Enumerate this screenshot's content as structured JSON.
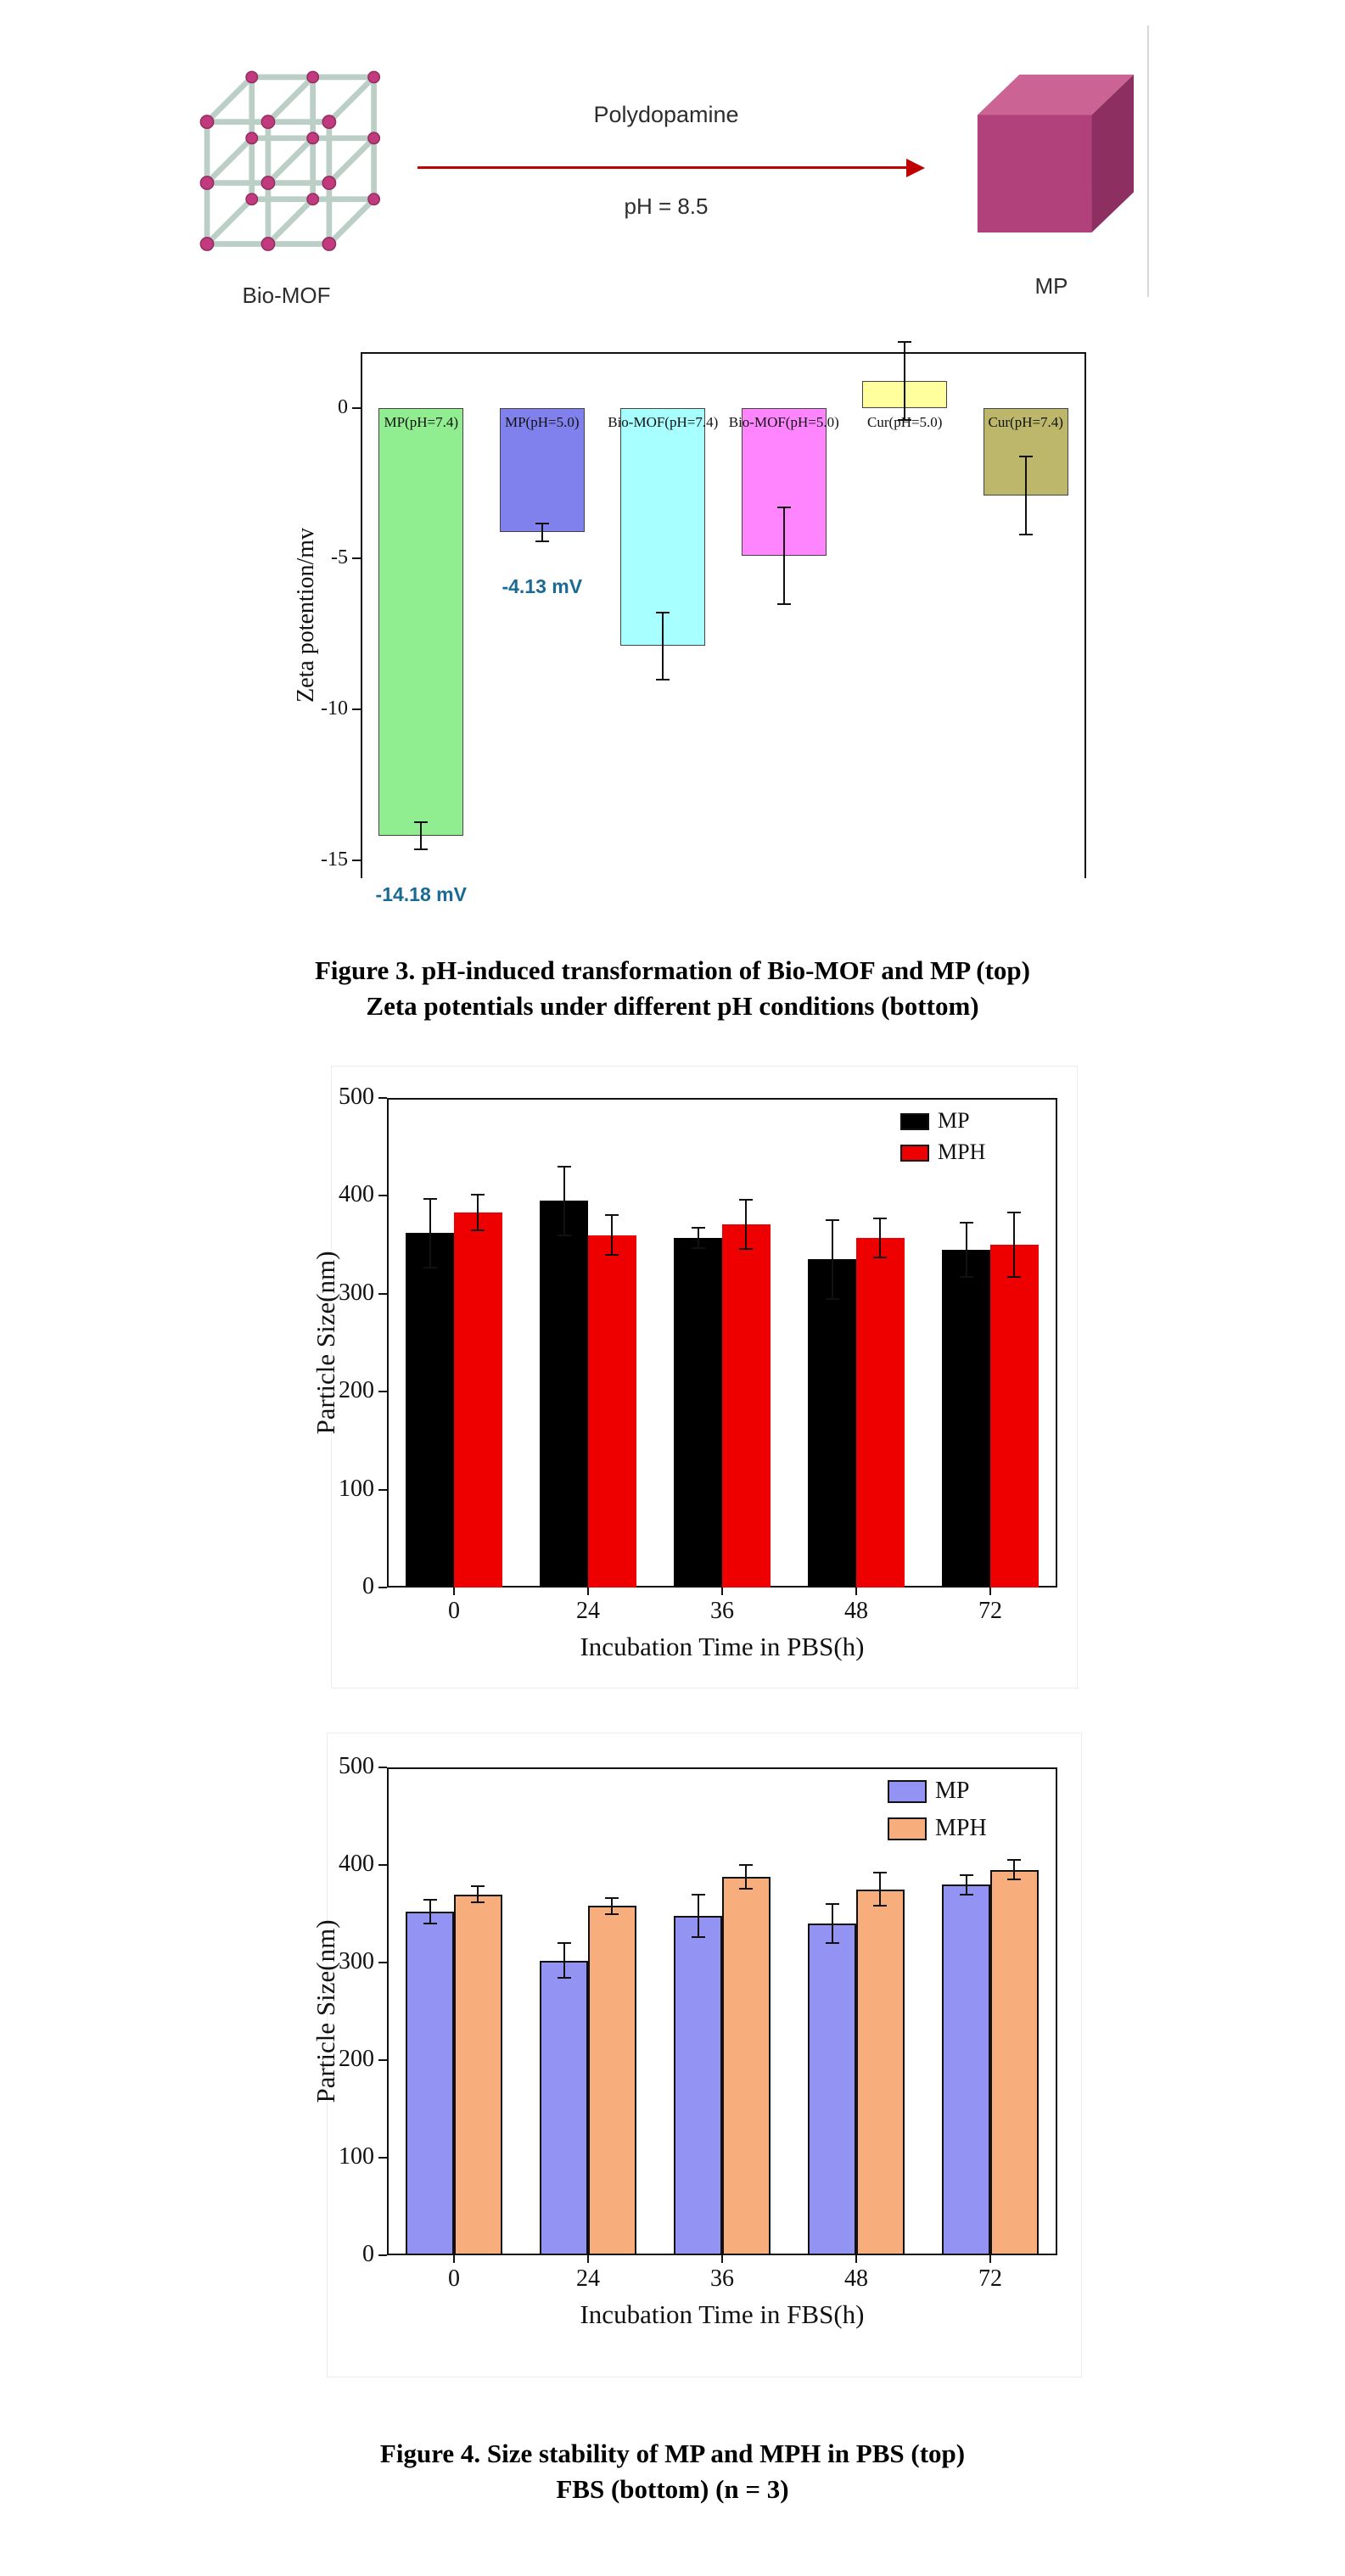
{
  "schematic": {
    "reactant_label": "Bio-MOF",
    "product_label": "MP",
    "arrow_top_label": "Polydopamine",
    "arrow_bottom_label": "pH = 8.5",
    "arrow_color": "#c00000",
    "strut_color": "#bccfc7",
    "node_color": "#c23a7e",
    "cube_face_colors": {
      "top": "#cb6394",
      "front": "#b1417a",
      "right": "#8d2f61"
    }
  },
  "captions": {
    "figure3_line1": "Figure 3. pH-induced transformation of Bio-MOF and MP (top)",
    "figure3_line2": "Zeta potentials under different pH conditions (bottom)",
    "figure4_line1": "Figure 4. Size stability of MP and MPH in PBS (top)",
    "figure4_line2": "FBS (bottom) (n = 3)"
  },
  "chart_data": [
    {
      "id": "zeta",
      "type": "bar",
      "title": "",
      "xlabel": "",
      "ylabel": "Zeta potention/mv",
      "ylim": [
        -15.6,
        1.85
      ],
      "yticks": [
        0,
        -5,
        -10,
        -15
      ],
      "grid": false,
      "legend_position": "none",
      "categories": [
        "MP(pH=7.4)",
        "MP(pH=5.0)",
        "Bio-MOF(pH=7.4)",
        "Bio-MOF(pH=5.0)",
        "Cur(pH=5.0)",
        "Cur(pH=7.4)"
      ],
      "values": [
        -14.18,
        -4.13,
        -7.9,
        -4.9,
        0.9,
        -2.9
      ],
      "errors": [
        0.45,
        0.3,
        1.1,
        1.6,
        1.3,
        1.3
      ],
      "colors": [
        "#90ee90",
        "#8181ed",
        "#a8ffff",
        "#ff85ff",
        "#ffff9e",
        "#bdb76b"
      ],
      "annotations": [
        {
          "text": "-14.18 mV",
          "category_index": 0,
          "color": "#1a6a96"
        },
        {
          "text": "-4.13 mV",
          "category_index": 1,
          "color": "#1a6a96"
        }
      ]
    },
    {
      "id": "pbs",
      "type": "bar",
      "title": "",
      "xlabel": "Incubation Time in PBS(h)",
      "ylabel": "Particle Size(nm)",
      "ylim": [
        0,
        500
      ],
      "yticks": [
        0,
        100,
        200,
        300,
        400,
        500
      ],
      "grid": false,
      "legend_position": "top-right",
      "categories": [
        "0",
        "24",
        "36",
        "48",
        "72"
      ],
      "series": [
        {
          "name": "MP",
          "color": "#000000",
          "values": [
            362,
            395,
            357,
            335,
            345
          ],
          "errors": [
            35,
            35,
            10,
            40,
            28
          ]
        },
        {
          "name": "MPH",
          "color": "#ee0000",
          "values": [
            383,
            360,
            371,
            357,
            350
          ],
          "errors": [
            18,
            20,
            25,
            20,
            33
          ]
        }
      ]
    },
    {
      "id": "fbs",
      "type": "bar",
      "title": "",
      "xlabel": "Incubation Time in FBS(h)",
      "ylabel": "Particle Size(nm)",
      "ylim": [
        0,
        500
      ],
      "yticks": [
        0,
        100,
        200,
        300,
        400,
        500
      ],
      "grid": false,
      "legend_position": "top-right",
      "categories": [
        "0",
        "24",
        "36",
        "48",
        "72"
      ],
      "series": [
        {
          "name": "MP",
          "color": "#9393f3",
          "values": [
            352,
            302,
            348,
            340,
            380
          ],
          "errors": [
            12,
            18,
            22,
            20,
            10
          ]
        },
        {
          "name": "MPH",
          "color": "#f8ae7c",
          "values": [
            370,
            358,
            388,
            375,
            395
          ],
          "errors": [
            8,
            8,
            12,
            17,
            10
          ]
        }
      ]
    }
  ]
}
